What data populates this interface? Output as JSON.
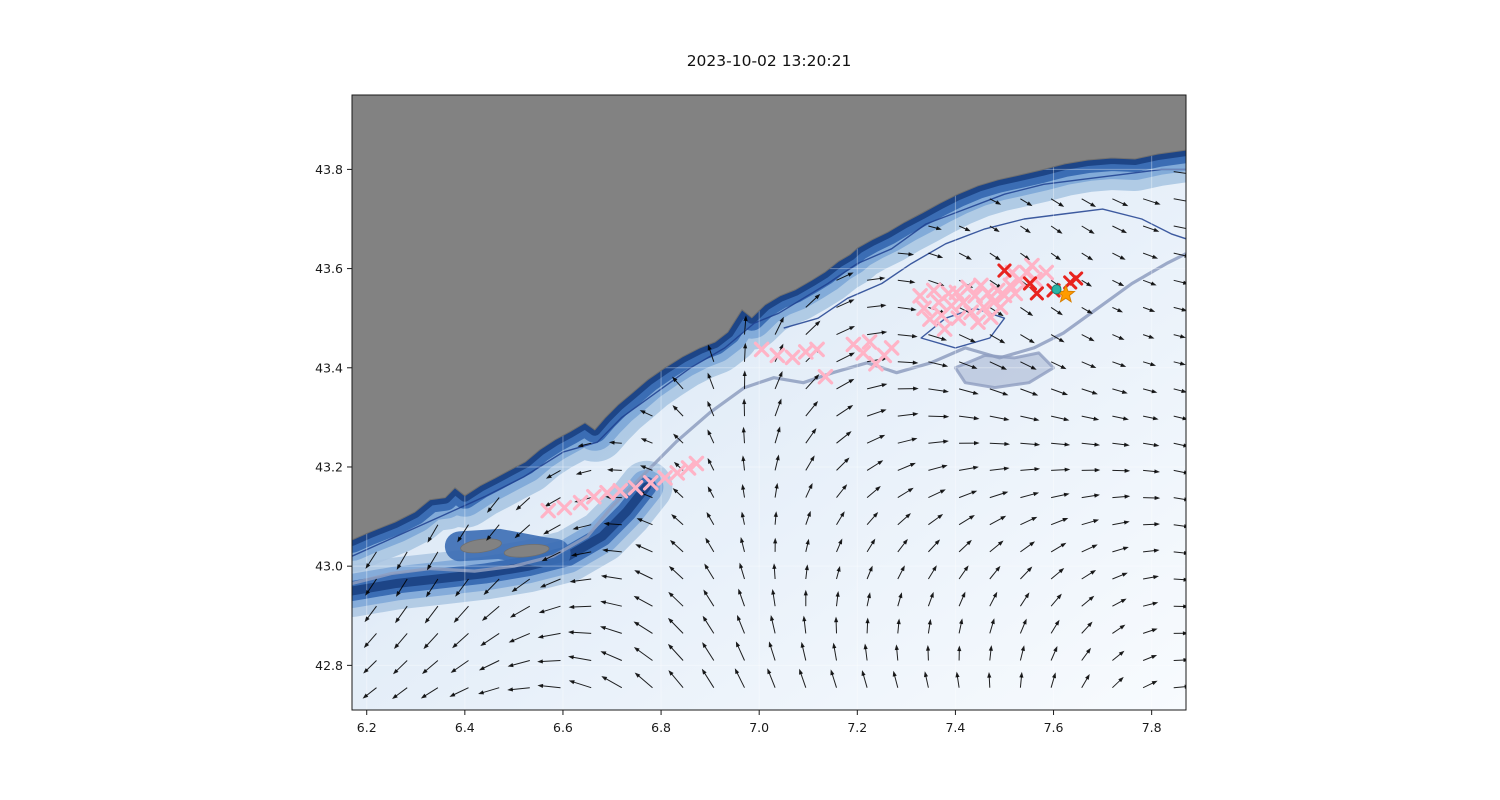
{
  "figure": {
    "title": "2023-10-02 13:20:21"
  },
  "chart_data": {
    "type": "scatter",
    "title": "2023-10-02 13:20:21",
    "xlabel": "",
    "ylabel": "",
    "xlim": [
      6.17,
      7.87
    ],
    "ylim": [
      42.71,
      43.95
    ],
    "xticks": [
      6.2,
      6.4,
      6.6,
      6.8,
      7.0,
      7.2,
      7.4,
      7.6,
      7.8
    ],
    "xtick_labels": [
      "6.2",
      "6.4",
      "6.6",
      "6.8",
      "7.0",
      "7.2",
      "7.4",
      "7.6",
      "7.8"
    ],
    "yticks": [
      42.8,
      43.0,
      43.2,
      43.4,
      43.6,
      43.8
    ],
    "ytick_labels": [
      "42.8",
      "43.0",
      "43.2",
      "43.4",
      "43.6",
      "43.8"
    ],
    "grid": true,
    "legend": "none",
    "colors": {
      "land": "#828282",
      "land_edge": "#6f6f6f",
      "sea_pale": "#f8fbfe",
      "sea_mid": "#e3edf8",
      "sea_shelf": "#bed3ea",
      "band_outer": "#aac6e2",
      "band_mid": "#7fa9d8",
      "band_deep": "#3b6db4",
      "band_deepest": "#1d4587",
      "contour_navy": "#1e3f8f",
      "contour_slate": "#8e9ec0",
      "slate_patch": "#9aa9c9",
      "grid_line": "#ffffff",
      "arrow": "#000000",
      "axis": "#1a1a1a",
      "pink_marker": "#ffb3c6",
      "red_marker": "#e8231f",
      "star_marker": "#ff9b00",
      "dot_marker": "#2ab5a5"
    },
    "map_features": {
      "land_coast": [
        [
          6.17,
          43.053
        ],
        [
          6.207,
          43.069
        ],
        [
          6.258,
          43.089
        ],
        [
          6.298,
          43.109
        ],
        [
          6.329,
          43.134
        ],
        [
          6.36,
          43.138
        ],
        [
          6.38,
          43.158
        ],
        [
          6.4,
          43.142
        ],
        [
          6.431,
          43.162
        ],
        [
          6.462,
          43.178
        ],
        [
          6.492,
          43.194
        ],
        [
          6.523,
          43.21
        ],
        [
          6.553,
          43.235
        ],
        [
          6.584,
          43.255
        ],
        [
          6.614,
          43.271
        ],
        [
          6.645,
          43.289
        ],
        [
          6.665,
          43.275
        ],
        [
          6.686,
          43.299
        ],
        [
          6.712,
          43.325
        ],
        [
          6.741,
          43.349
        ],
        [
          6.773,
          43.376
        ],
        [
          6.808,
          43.4
        ],
        [
          6.843,
          43.422
        ],
        [
          6.879,
          43.44
        ],
        [
          6.91,
          43.452
        ],
        [
          6.936,
          43.472
        ],
        [
          6.965,
          43.517
        ],
        [
          6.985,
          43.501
        ],
        [
          7.012,
          43.527
        ],
        [
          7.042,
          43.545
        ],
        [
          7.073,
          43.557
        ],
        [
          7.108,
          43.577
        ],
        [
          7.134,
          43.593
        ],
        [
          7.161,
          43.614
        ],
        [
          7.185,
          43.628
        ],
        [
          7.201,
          43.642
        ],
        [
          7.23,
          43.658
        ],
        [
          7.263,
          43.674
        ],
        [
          7.297,
          43.694
        ],
        [
          7.332,
          43.712
        ],
        [
          7.369,
          43.732
        ],
        [
          7.405,
          43.75
        ],
        [
          7.446,
          43.767
        ],
        [
          7.487,
          43.779
        ],
        [
          7.532,
          43.789
        ],
        [
          7.576,
          43.799
        ],
        [
          7.623,
          43.811
        ],
        [
          7.67,
          43.819
        ],
        [
          7.719,
          43.823
        ],
        [
          7.766,
          43.821
        ],
        [
          7.813,
          43.831
        ],
        [
          7.87,
          43.839
        ]
      ],
      "southwest_slope": [
        [
          6.17,
          42.95
        ],
        [
          6.26,
          42.965
        ],
        [
          6.35,
          42.975
        ],
        [
          6.44,
          42.985
        ],
        [
          6.53,
          43.0
        ],
        [
          6.61,
          43.02
        ],
        [
          6.68,
          43.06
        ],
        [
          6.73,
          43.11
        ],
        [
          6.77,
          43.16
        ]
      ],
      "islands_shoal": [
        [
          6.39,
          43.04
        ],
        [
          6.47,
          43.045
        ],
        [
          6.55,
          43.03
        ],
        [
          6.585,
          43.025
        ]
      ],
      "islands": [
        {
          "c": [
            6.433,
            43.041
          ],
          "rx": 0.042,
          "ry": 0.013,
          "rot": -8
        },
        {
          "c": [
            6.526,
            43.031
          ],
          "rx": 0.046,
          "ry": 0.012,
          "rot": -6
        }
      ],
      "slate_patch": [
        [
          7.4,
          43.4
        ],
        [
          7.46,
          43.425
        ],
        [
          7.52,
          43.42
        ],
        [
          7.57,
          43.43
        ],
        [
          7.6,
          43.4
        ],
        [
          7.55,
          43.37
        ],
        [
          7.48,
          43.36
        ],
        [
          7.42,
          43.37
        ]
      ],
      "contours": [
        {
          "name": "depth-contour-navy-inshore",
          "color": "#1e3f8f",
          "width": 1.4,
          "closed": false,
          "points": [
            [
              6.17,
              43.02
            ],
            [
              6.26,
              43.06
            ],
            [
              6.35,
              43.1
            ],
            [
              6.44,
              43.14
            ],
            [
              6.52,
              43.18
            ],
            [
              6.6,
              43.23
            ],
            [
              6.67,
              43.25
            ],
            [
              6.72,
              43.3
            ],
            [
              6.79,
              43.35
            ],
            [
              6.86,
              43.4
            ],
            [
              6.93,
              43.44
            ],
            [
              6.99,
              43.49
            ],
            [
              7.04,
              43.51
            ],
            [
              7.09,
              43.54
            ],
            [
              7.14,
              43.57
            ],
            [
              7.2,
              43.61
            ],
            [
              7.27,
              43.64
            ],
            [
              7.34,
              43.69
            ],
            [
              7.42,
              43.72
            ],
            [
              7.5,
              43.75
            ],
            [
              7.58,
              43.77
            ],
            [
              7.66,
              43.78
            ],
            [
              7.74,
              43.79
            ],
            [
              7.82,
              43.8
            ],
            [
              7.87,
              43.8
            ]
          ]
        },
        {
          "name": "depth-contour-navy-offshore",
          "color": "#1e3f8f",
          "width": 1.4,
          "closed": false,
          "points": [
            [
              7.05,
              43.48
            ],
            [
              7.12,
              43.5
            ],
            [
              7.18,
              43.54
            ],
            [
              7.25,
              43.57
            ],
            [
              7.31,
              43.61
            ],
            [
              7.38,
              43.65
            ],
            [
              7.46,
              43.68
            ],
            [
              7.54,
              43.7
            ],
            [
              7.62,
              43.71
            ],
            [
              7.7,
              43.72
            ],
            [
              7.78,
              43.7
            ],
            [
              7.84,
              43.67
            ],
            [
              7.87,
              43.66
            ]
          ]
        },
        {
          "name": "depth-contour-navy-loop",
          "color": "#1e3f8f",
          "width": 1.4,
          "closed": true,
          "points": [
            [
              7.33,
              43.46
            ],
            [
              7.38,
              43.5
            ],
            [
              7.44,
              43.52
            ],
            [
              7.5,
              43.5
            ],
            [
              7.47,
              43.46
            ],
            [
              7.4,
              43.44
            ]
          ]
        },
        {
          "name": "depth-contour-slate-offshore",
          "color": "#8e9ec0",
          "width": 3.2,
          "closed": false,
          "points": [
            [
              6.17,
              42.965
            ],
            [
              6.25,
              42.985
            ],
            [
              6.33,
              42.995
            ],
            [
              6.42,
              42.99
            ],
            [
              6.5,
              43.0
            ],
            [
              6.58,
              43.02
            ],
            [
              6.65,
              43.06
            ],
            [
              6.7,
              43.12
            ],
            [
              6.76,
              43.18
            ],
            [
              6.83,
              43.25
            ],
            [
              6.9,
              43.31
            ],
            [
              6.97,
              43.36
            ],
            [
              7.03,
              43.38
            ],
            [
              7.09,
              43.37
            ],
            [
              7.15,
              43.39
            ],
            [
              7.22,
              43.41
            ],
            [
              7.28,
              43.39
            ],
            [
              7.35,
              43.41
            ],
            [
              7.42,
              43.44
            ],
            [
              7.49,
              43.42
            ],
            [
              7.56,
              43.44
            ],
            [
              7.62,
              43.47
            ],
            [
              7.69,
              43.52
            ],
            [
              7.76,
              43.57
            ],
            [
              7.83,
              43.61
            ],
            [
              7.87,
              43.63
            ]
          ]
        }
      ]
    },
    "quiver": {
      "x_start": 6.22,
      "x_end": 7.845,
      "cols": 27,
      "y_start": 42.755,
      "y_end": 43.905,
      "rows": 22,
      "coeffs": {
        "a": 1.85,
        "b": 0.85,
        "c": 2.6,
        "d": 2.0,
        "e": 0.55,
        "f": 4.6,
        "g": 2.8,
        "m1": 0.2,
        "m2": 0.6,
        "m3": 0.35
      },
      "land_margin": 0.03
    },
    "series": [
      {
        "name": "pink-x-markers",
        "marker": "x",
        "color": "#ffb3c6",
        "size": 6.2,
        "stroke_width": 3.2,
        "points": [
          [
            6.57,
            43.112
          ],
          [
            6.603,
            43.118
          ],
          [
            6.636,
            43.128
          ],
          [
            6.663,
            43.14
          ],
          [
            6.69,
            43.148
          ],
          [
            6.717,
            43.152
          ],
          [
            6.748,
            43.158
          ],
          [
            6.779,
            43.168
          ],
          [
            6.808,
            43.178
          ],
          [
            6.833,
            43.188
          ],
          [
            6.856,
            43.198
          ],
          [
            6.872,
            43.207
          ],
          [
            7.005,
            43.437
          ],
          [
            7.037,
            43.425
          ],
          [
            7.068,
            43.421
          ],
          [
            7.095,
            43.432
          ],
          [
            7.118,
            43.437
          ],
          [
            7.135,
            43.382
          ],
          [
            7.192,
            43.447
          ],
          [
            7.212,
            43.43
          ],
          [
            7.225,
            43.452
          ],
          [
            7.238,
            43.408
          ],
          [
            7.255,
            43.425
          ],
          [
            7.27,
            43.44
          ],
          [
            7.328,
            43.545
          ],
          [
            7.336,
            43.52
          ],
          [
            7.348,
            43.498
          ],
          [
            7.356,
            43.556
          ],
          [
            7.366,
            43.532
          ],
          [
            7.372,
            43.506
          ],
          [
            7.378,
            43.478
          ],
          [
            7.386,
            43.55
          ],
          [
            7.392,
            43.525
          ],
          [
            7.402,
            43.552
          ],
          [
            7.406,
            43.5
          ],
          [
            7.416,
            43.532
          ],
          [
            7.426,
            43.562
          ],
          [
            7.432,
            43.512
          ],
          [
            7.44,
            43.545
          ],
          [
            7.446,
            43.492
          ],
          [
            7.452,
            43.566
          ],
          [
            7.458,
            43.522
          ],
          [
            7.466,
            43.55
          ],
          [
            7.472,
            43.502
          ],
          [
            7.478,
            43.532
          ],
          [
            7.486,
            43.556
          ],
          [
            7.492,
            43.522
          ],
          [
            7.5,
            43.546
          ],
          [
            7.512,
            43.566
          ],
          [
            7.516,
            43.592
          ],
          [
            7.53,
            43.576
          ],
          [
            7.545,
            43.592
          ],
          [
            7.556,
            43.606
          ],
          [
            7.522,
            43.55
          ],
          [
            7.562,
            43.578
          ],
          [
            7.585,
            43.592
          ]
        ]
      },
      {
        "name": "red-x-markers",
        "marker": "x",
        "color": "#e8231f",
        "size": 5.6,
        "stroke_width": 3.0,
        "points": [
          [
            7.5,
            43.596
          ],
          [
            7.552,
            43.57
          ],
          [
            7.566,
            43.55
          ],
          [
            7.6,
            43.556
          ],
          [
            7.634,
            43.572
          ],
          [
            7.646,
            43.58
          ]
        ]
      },
      {
        "name": "orange-star-marker",
        "marker": "star",
        "color": "#ff9b00",
        "size": 9,
        "stroke_width": 1,
        "points": [
          [
            7.625,
            43.548
          ]
        ]
      },
      {
        "name": "teal-dot-marker",
        "marker": "circle",
        "color": "#2ab5a5",
        "size": 4.5,
        "stroke_width": 1,
        "points": [
          [
            7.606,
            43.558
          ]
        ]
      }
    ]
  }
}
